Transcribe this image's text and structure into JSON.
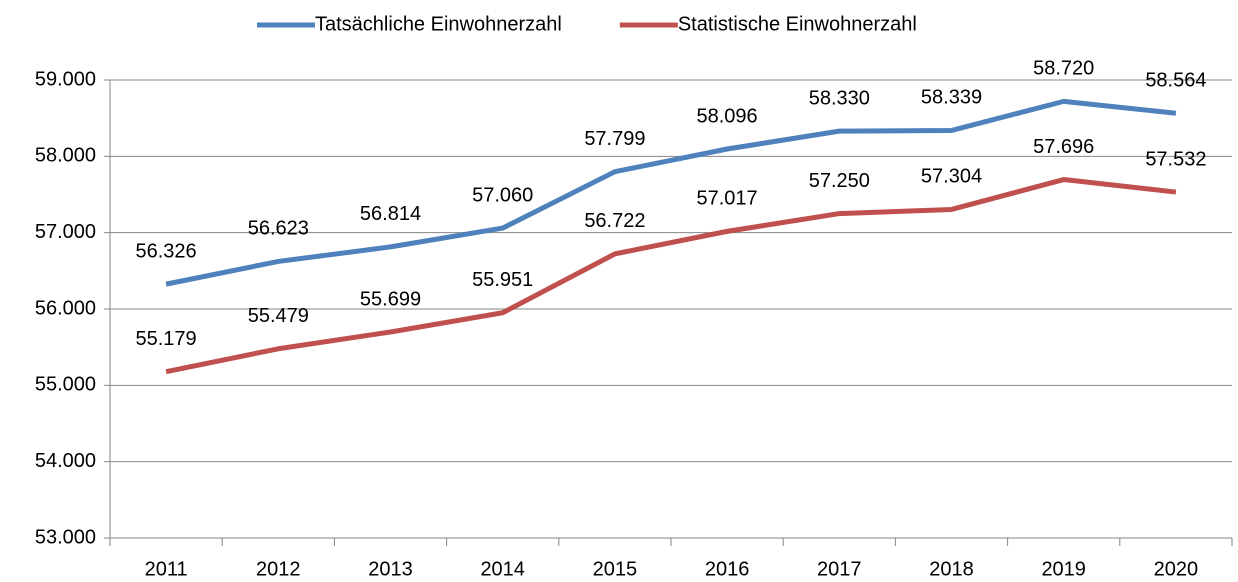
{
  "chart_data": {
    "type": "line",
    "categories": [
      "2011",
      "2012",
      "2013",
      "2014",
      "2015",
      "2016",
      "2017",
      "2018",
      "2019",
      "2020"
    ],
    "series": [
      {
        "name": "Tatsächliche Einwohnerzahl",
        "color": "#4f81bd",
        "values": [
          56326,
          56623,
          56814,
          57060,
          57799,
          58096,
          58330,
          58339,
          58720,
          58564
        ],
        "value_labels": [
          "56.326",
          "56.623",
          "56.814",
          "57.060",
          "57.799",
          "58.096",
          "58.330",
          "58.339",
          "58.720",
          "58.564"
        ]
      },
      {
        "name": "Statistische Einwohnerzahl",
        "color": "#c0504d",
        "values": [
          55179,
          55479,
          55699,
          55951,
          56722,
          57017,
          57250,
          57304,
          57696,
          57532
        ],
        "value_labels": [
          "55.179",
          "55.479",
          "55.699",
          "55.951",
          "56.722",
          "57.017",
          "57.250",
          "57.304",
          "57.696",
          "57.532"
        ]
      }
    ],
    "ylim": [
      53000,
      59000
    ],
    "yticks": [
      {
        "value": 53000,
        "label": "53.000"
      },
      {
        "value": 54000,
        "label": "54.000"
      },
      {
        "value": 55000,
        "label": "55.000"
      },
      {
        "value": 56000,
        "label": "56.000"
      },
      {
        "value": 57000,
        "label": "57.000"
      },
      {
        "value": 58000,
        "label": "58.000"
      },
      {
        "value": 59000,
        "label": "59.000"
      }
    ],
    "grid": true,
    "legend": "top"
  }
}
